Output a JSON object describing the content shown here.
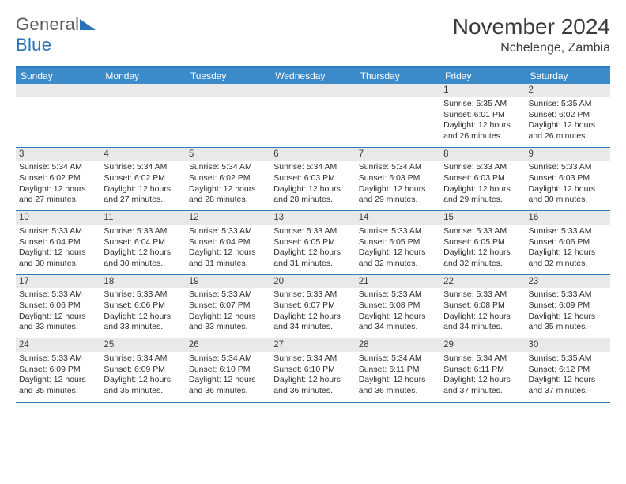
{
  "brand": {
    "name_a": "General",
    "name_b": "Blue"
  },
  "title": "November 2024",
  "location": "Nchelenge, Zambia",
  "colors": {
    "header_bg": "#3b8ac9",
    "rule": "#2f7bc2",
    "daynum_bg": "#e9e9e9",
    "text": "#333333",
    "logo_gray": "#5a5a5a",
    "logo_blue": "#2872b8"
  },
  "fonts": {
    "title_pt": 28,
    "location_pt": 16,
    "dayname_pt": 12,
    "cell_pt": 10.5
  },
  "daynames": [
    "Sunday",
    "Monday",
    "Tuesday",
    "Wednesday",
    "Thursday",
    "Friday",
    "Saturday"
  ],
  "weeks": [
    [
      {
        "n": "",
        "blank": true
      },
      {
        "n": "",
        "blank": true
      },
      {
        "n": "",
        "blank": true
      },
      {
        "n": "",
        "blank": true
      },
      {
        "n": "",
        "blank": true
      },
      {
        "n": "1",
        "sunrise": "Sunrise: 5:35 AM",
        "sunset": "Sunset: 6:01 PM",
        "daylight": "Daylight: 12 hours and 26 minutes."
      },
      {
        "n": "2",
        "sunrise": "Sunrise: 5:35 AM",
        "sunset": "Sunset: 6:02 PM",
        "daylight": "Daylight: 12 hours and 26 minutes."
      }
    ],
    [
      {
        "n": "3",
        "sunrise": "Sunrise: 5:34 AM",
        "sunset": "Sunset: 6:02 PM",
        "daylight": "Daylight: 12 hours and 27 minutes."
      },
      {
        "n": "4",
        "sunrise": "Sunrise: 5:34 AM",
        "sunset": "Sunset: 6:02 PM",
        "daylight": "Daylight: 12 hours and 27 minutes."
      },
      {
        "n": "5",
        "sunrise": "Sunrise: 5:34 AM",
        "sunset": "Sunset: 6:02 PM",
        "daylight": "Daylight: 12 hours and 28 minutes."
      },
      {
        "n": "6",
        "sunrise": "Sunrise: 5:34 AM",
        "sunset": "Sunset: 6:03 PM",
        "daylight": "Daylight: 12 hours and 28 minutes."
      },
      {
        "n": "7",
        "sunrise": "Sunrise: 5:34 AM",
        "sunset": "Sunset: 6:03 PM",
        "daylight": "Daylight: 12 hours and 29 minutes."
      },
      {
        "n": "8",
        "sunrise": "Sunrise: 5:33 AM",
        "sunset": "Sunset: 6:03 PM",
        "daylight": "Daylight: 12 hours and 29 minutes."
      },
      {
        "n": "9",
        "sunrise": "Sunrise: 5:33 AM",
        "sunset": "Sunset: 6:03 PM",
        "daylight": "Daylight: 12 hours and 30 minutes."
      }
    ],
    [
      {
        "n": "10",
        "sunrise": "Sunrise: 5:33 AM",
        "sunset": "Sunset: 6:04 PM",
        "daylight": "Daylight: 12 hours and 30 minutes."
      },
      {
        "n": "11",
        "sunrise": "Sunrise: 5:33 AM",
        "sunset": "Sunset: 6:04 PM",
        "daylight": "Daylight: 12 hours and 30 minutes."
      },
      {
        "n": "12",
        "sunrise": "Sunrise: 5:33 AM",
        "sunset": "Sunset: 6:04 PM",
        "daylight": "Daylight: 12 hours and 31 minutes."
      },
      {
        "n": "13",
        "sunrise": "Sunrise: 5:33 AM",
        "sunset": "Sunset: 6:05 PM",
        "daylight": "Daylight: 12 hours and 31 minutes."
      },
      {
        "n": "14",
        "sunrise": "Sunrise: 5:33 AM",
        "sunset": "Sunset: 6:05 PM",
        "daylight": "Daylight: 12 hours and 32 minutes."
      },
      {
        "n": "15",
        "sunrise": "Sunrise: 5:33 AM",
        "sunset": "Sunset: 6:05 PM",
        "daylight": "Daylight: 12 hours and 32 minutes."
      },
      {
        "n": "16",
        "sunrise": "Sunrise: 5:33 AM",
        "sunset": "Sunset: 6:06 PM",
        "daylight": "Daylight: 12 hours and 32 minutes."
      }
    ],
    [
      {
        "n": "17",
        "sunrise": "Sunrise: 5:33 AM",
        "sunset": "Sunset: 6:06 PM",
        "daylight": "Daylight: 12 hours and 33 minutes."
      },
      {
        "n": "18",
        "sunrise": "Sunrise: 5:33 AM",
        "sunset": "Sunset: 6:06 PM",
        "daylight": "Daylight: 12 hours and 33 minutes."
      },
      {
        "n": "19",
        "sunrise": "Sunrise: 5:33 AM",
        "sunset": "Sunset: 6:07 PM",
        "daylight": "Daylight: 12 hours and 33 minutes."
      },
      {
        "n": "20",
        "sunrise": "Sunrise: 5:33 AM",
        "sunset": "Sunset: 6:07 PM",
        "daylight": "Daylight: 12 hours and 34 minutes."
      },
      {
        "n": "21",
        "sunrise": "Sunrise: 5:33 AM",
        "sunset": "Sunset: 6:08 PM",
        "daylight": "Daylight: 12 hours and 34 minutes."
      },
      {
        "n": "22",
        "sunrise": "Sunrise: 5:33 AM",
        "sunset": "Sunset: 6:08 PM",
        "daylight": "Daylight: 12 hours and 34 minutes."
      },
      {
        "n": "23",
        "sunrise": "Sunrise: 5:33 AM",
        "sunset": "Sunset: 6:09 PM",
        "daylight": "Daylight: 12 hours and 35 minutes."
      }
    ],
    [
      {
        "n": "24",
        "sunrise": "Sunrise: 5:33 AM",
        "sunset": "Sunset: 6:09 PM",
        "daylight": "Daylight: 12 hours and 35 minutes."
      },
      {
        "n": "25",
        "sunrise": "Sunrise: 5:34 AM",
        "sunset": "Sunset: 6:09 PM",
        "daylight": "Daylight: 12 hours and 35 minutes."
      },
      {
        "n": "26",
        "sunrise": "Sunrise: 5:34 AM",
        "sunset": "Sunset: 6:10 PM",
        "daylight": "Daylight: 12 hours and 36 minutes."
      },
      {
        "n": "27",
        "sunrise": "Sunrise: 5:34 AM",
        "sunset": "Sunset: 6:10 PM",
        "daylight": "Daylight: 12 hours and 36 minutes."
      },
      {
        "n": "28",
        "sunrise": "Sunrise: 5:34 AM",
        "sunset": "Sunset: 6:11 PM",
        "daylight": "Daylight: 12 hours and 36 minutes."
      },
      {
        "n": "29",
        "sunrise": "Sunrise: 5:34 AM",
        "sunset": "Sunset: 6:11 PM",
        "daylight": "Daylight: 12 hours and 37 minutes."
      },
      {
        "n": "30",
        "sunrise": "Sunrise: 5:35 AM",
        "sunset": "Sunset: 6:12 PM",
        "daylight": "Daylight: 12 hours and 37 minutes."
      }
    ]
  ]
}
